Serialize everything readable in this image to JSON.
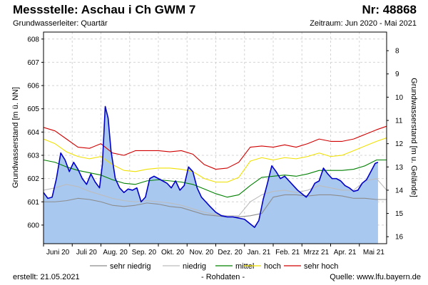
{
  "header": {
    "title": "Messstelle: Aschau i Ch GWM 7",
    "station_nr": "Nr: 48868",
    "aquifer": "Grundwasserleiter: Quartär",
    "period": "Zeitraum: Jun 2020 - Mai 2021"
  },
  "footer": {
    "created": "erstellt:  21.05.2021",
    "data_type": "- Rohdaten -",
    "source": "Quelle: www.lfu.bayern.de"
  },
  "colors": {
    "fill": "#a9c8ef",
    "measured": "#0000c8",
    "sehr_niedrig": "#8c8c8c",
    "niedrig": "#bcbcbc",
    "mittel": "#008000",
    "hoch": "#f0e000",
    "sehr_hoch": "#d00000",
    "grid": "#d4d4d4"
  },
  "chart_data": {
    "type": "area",
    "ylabel": "Grundwasserstand [m ü. NN]",
    "ylabel_right": "Grundwasserstand [m u. Gelände]",
    "ylim": [
      599.2,
      608.3
    ],
    "yticks": [
      600,
      601,
      602,
      603,
      604,
      605,
      606,
      607,
      608
    ],
    "ylim_right": [
      16.3,
      7.2
    ],
    "yticks_right": [
      8,
      9,
      10,
      11,
      12,
      13,
      14,
      15,
      16
    ],
    "xlim": [
      0,
      11.95
    ],
    "month_labels": [
      "Juni 20",
      "Juli 20",
      "Aug. 20",
      "Sep. 20",
      "Okt. 20",
      "Nov. 20",
      "Dez. 20",
      "Jan. 21",
      "Feb. 21",
      "Mrzz 21",
      "Apr. 21",
      "Mai 21"
    ],
    "grid": true,
    "legend_position": "bottom",
    "series": [
      {
        "name": "sehr niedrig",
        "key": "sehr_niedrig",
        "x": [
          0,
          0.4,
          0.8,
          1.2,
          1.6,
          2.0,
          2.4,
          2.8,
          3.2,
          3.6,
          4.0,
          4.4,
          4.8,
          5.2,
          5.6,
          6.0,
          6.4,
          6.8,
          7.2,
          7.6,
          8.0,
          8.4,
          8.8,
          9.2,
          9.6,
          10.0,
          10.4,
          10.8,
          11.2,
          11.6,
          11.95
        ],
        "y": [
          601.0,
          601.0,
          601.05,
          601.15,
          601.1,
          601.0,
          600.85,
          600.8,
          600.85,
          600.95,
          600.9,
          600.8,
          600.75,
          600.6,
          600.45,
          600.4,
          600.35,
          600.35,
          600.4,
          600.5,
          601.2,
          601.3,
          601.3,
          601.25,
          601.3,
          601.3,
          601.25,
          601.15,
          601.15,
          601.1,
          601.1
        ]
      },
      {
        "name": "niedrig",
        "key": "niedrig",
        "x": [
          0,
          0.4,
          0.8,
          1.2,
          1.6,
          2.0,
          2.4,
          2.8,
          3.2,
          3.6,
          4.0,
          4.4,
          4.8,
          5.2,
          5.6,
          6.0,
          6.4,
          6.8,
          7.2,
          7.6,
          8.0,
          8.4,
          8.8,
          9.2,
          9.6,
          10.0,
          10.4,
          10.8,
          11.2,
          11.6,
          11.95
        ],
        "y": [
          601.5,
          601.6,
          601.75,
          601.65,
          601.45,
          601.3,
          601.15,
          601.05,
          601.0,
          601.05,
          601.0,
          600.95,
          600.85,
          600.7,
          600.55,
          600.45,
          600.4,
          600.4,
          601.0,
          601.3,
          601.45,
          601.5,
          601.4,
          601.5,
          601.7,
          601.6,
          601.5,
          601.5,
          601.9,
          602.0,
          601.5
        ]
      },
      {
        "name": "mittel",
        "key": "mittel",
        "x": [
          0,
          0.4,
          0.8,
          1.2,
          1.6,
          2.0,
          2.4,
          2.8,
          3.2,
          3.6,
          4.0,
          4.4,
          4.8,
          5.2,
          5.6,
          6.0,
          6.4,
          6.8,
          7.2,
          7.6,
          8.0,
          8.4,
          8.8,
          9.2,
          9.6,
          10.0,
          10.4,
          10.8,
          11.2,
          11.6,
          11.95
        ],
        "y": [
          602.8,
          602.7,
          602.5,
          602.35,
          602.25,
          602.15,
          601.95,
          601.8,
          601.75,
          601.9,
          601.95,
          601.9,
          601.85,
          601.75,
          601.55,
          601.35,
          601.2,
          601.3,
          601.7,
          602.05,
          602.1,
          602.15,
          602.1,
          602.2,
          602.35,
          602.35,
          602.35,
          602.4,
          602.55,
          602.8,
          602.8
        ]
      },
      {
        "name": "hoch",
        "key": "hoch",
        "x": [
          0,
          0.4,
          0.8,
          1.2,
          1.6,
          2.0,
          2.4,
          2.8,
          3.2,
          3.6,
          4.0,
          4.4,
          4.8,
          5.2,
          5.6,
          6.0,
          6.4,
          6.8,
          7.2,
          7.6,
          8.0,
          8.4,
          8.8,
          9.2,
          9.6,
          10.0,
          10.4,
          10.8,
          11.2,
          11.6,
          11.95
        ],
        "y": [
          603.7,
          603.5,
          603.15,
          602.95,
          602.85,
          602.95,
          602.6,
          602.35,
          602.3,
          602.4,
          602.45,
          602.45,
          602.4,
          602.3,
          602.0,
          601.85,
          601.85,
          602.05,
          602.75,
          602.9,
          602.8,
          602.9,
          602.85,
          602.95,
          603.1,
          602.95,
          603.0,
          603.2,
          603.4,
          603.6,
          603.75
        ]
      },
      {
        "name": "sehr hoch",
        "key": "sehr_hoch",
        "x": [
          0,
          0.4,
          0.8,
          1.2,
          1.6,
          2.0,
          2.4,
          2.8,
          3.2,
          3.6,
          4.0,
          4.4,
          4.8,
          5.2,
          5.6,
          6.0,
          6.4,
          6.8,
          7.2,
          7.6,
          8.0,
          8.4,
          8.8,
          9.2,
          9.6,
          10.0,
          10.4,
          10.8,
          11.2,
          11.6,
          11.95
        ],
        "y": [
          604.2,
          604.05,
          603.7,
          603.35,
          603.3,
          603.5,
          603.1,
          603.0,
          603.2,
          603.2,
          603.2,
          603.15,
          603.2,
          603.05,
          602.6,
          602.4,
          602.45,
          602.7,
          603.35,
          603.4,
          603.35,
          603.45,
          603.35,
          603.5,
          603.7,
          603.6,
          603.6,
          603.7,
          603.9,
          604.1,
          604.25
        ]
      },
      {
        "name": "Messwerte",
        "key": "measured",
        "legend": false,
        "x": [
          0,
          0.15,
          0.3,
          0.45,
          0.6,
          0.75,
          0.9,
          1.05,
          1.2,
          1.35,
          1.5,
          1.65,
          1.8,
          1.95,
          2.05,
          2.15,
          2.25,
          2.35,
          2.5,
          2.65,
          2.8,
          2.95,
          3.1,
          3.25,
          3.4,
          3.55,
          3.7,
          3.85,
          4.0,
          4.15,
          4.3,
          4.45,
          4.6,
          4.75,
          4.9,
          5.05,
          5.2,
          5.35,
          5.5,
          5.65,
          5.8,
          6.0,
          6.2,
          6.4,
          6.6,
          6.8,
          7.0,
          7.2,
          7.35,
          7.5,
          7.65,
          7.8,
          7.95,
          8.1,
          8.25,
          8.4,
          8.55,
          8.7,
          8.85,
          9.0,
          9.15,
          9.3,
          9.45,
          9.6,
          9.75,
          9.9,
          10.05,
          10.2,
          10.35,
          10.5,
          10.65,
          10.8,
          10.95,
          11.1,
          11.25,
          11.4,
          11.55,
          11.65
        ],
        "y": [
          601.4,
          601.15,
          601.2,
          602.0,
          603.1,
          602.8,
          602.3,
          602.7,
          602.4,
          602.0,
          601.75,
          602.2,
          601.85,
          601.6,
          602.6,
          605.1,
          604.6,
          603.2,
          602.0,
          601.6,
          601.4,
          601.55,
          601.5,
          601.6,
          601.0,
          601.2,
          602.0,
          602.1,
          602.0,
          601.9,
          601.8,
          601.6,
          601.9,
          601.5,
          601.7,
          602.5,
          602.3,
          601.6,
          601.2,
          601.0,
          600.8,
          600.55,
          600.4,
          600.35,
          600.35,
          600.3,
          600.25,
          600.05,
          599.9,
          600.2,
          601.1,
          601.8,
          602.55,
          602.3,
          602.0,
          602.1,
          601.9,
          601.7,
          601.5,
          601.35,
          601.2,
          601.45,
          601.8,
          601.9,
          602.45,
          602.2,
          602.0,
          602.0,
          601.9,
          601.7,
          601.6,
          601.45,
          601.5,
          601.8,
          601.95,
          602.3,
          602.65,
          602.7
        ]
      }
    ]
  }
}
